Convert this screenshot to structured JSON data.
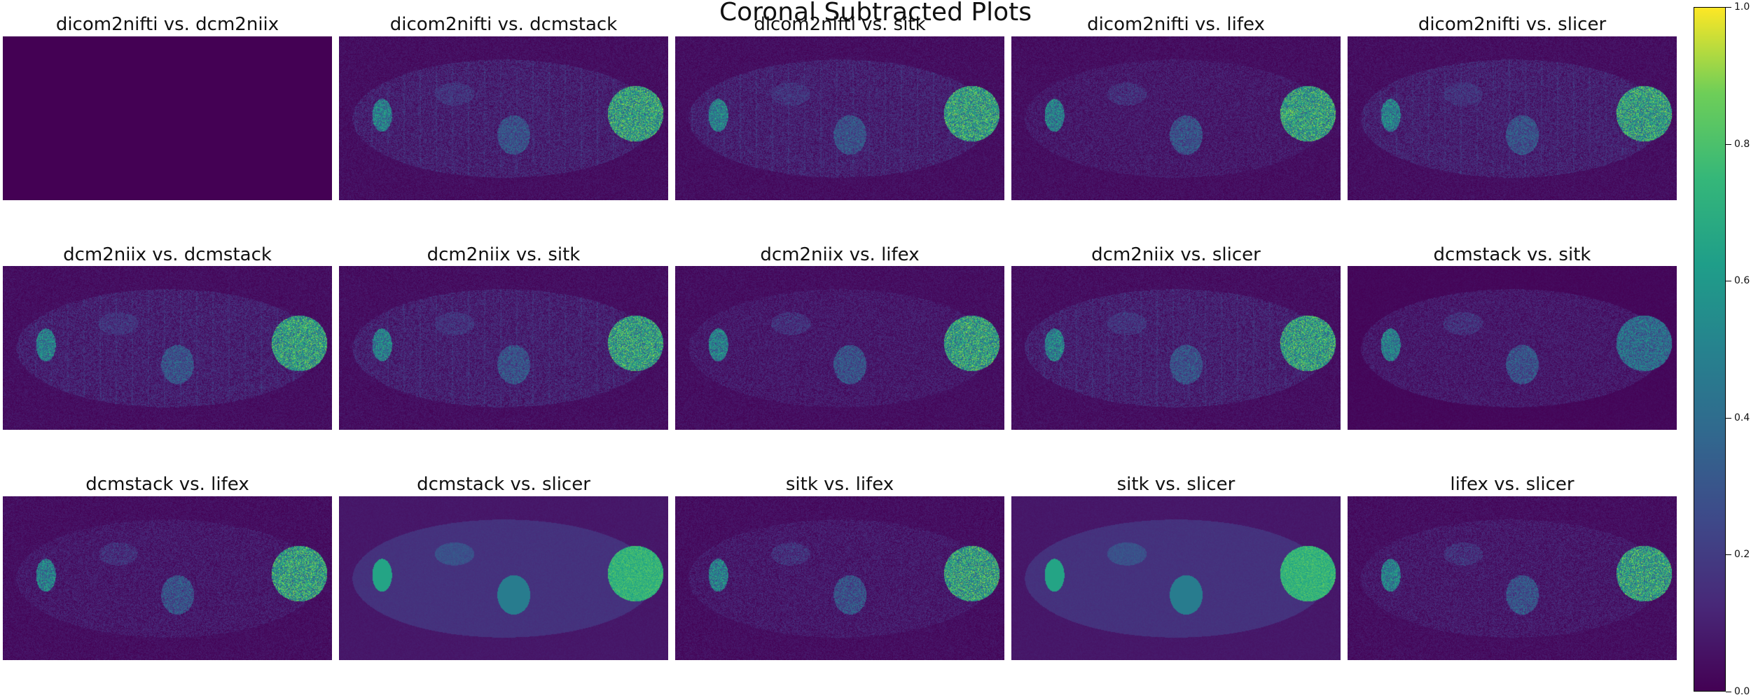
{
  "figure": {
    "title": "Coronal Subtracted Plots",
    "colormap": "viridis",
    "background": "#440154"
  },
  "panels": [
    {
      "title": "dicom2nifti vs. dcm2niix",
      "style": "blank"
    },
    {
      "title": "dicom2nifti vs. dcmstack",
      "style": "diff"
    },
    {
      "title": "dicom2nifti vs. sitk",
      "style": "diff"
    },
    {
      "title": "dicom2nifti vs. lifex",
      "style": "diff_light"
    },
    {
      "title": "dicom2nifti vs. slicer",
      "style": "diff"
    },
    {
      "title": "dcm2niix vs. dcmstack",
      "style": "diff"
    },
    {
      "title": "dcm2niix vs. sitk",
      "style": "diff"
    },
    {
      "title": "dcm2niix vs. lifex",
      "style": "diff_light"
    },
    {
      "title": "dcm2niix vs. slicer",
      "style": "diff"
    },
    {
      "title": "dcmstack vs. sitk",
      "style": "sparse"
    },
    {
      "title": "dcmstack vs. lifex",
      "style": "diff_light"
    },
    {
      "title": "dcmstack vs. slicer",
      "style": "anatomy"
    },
    {
      "title": "sitk vs. lifex",
      "style": "diff_light"
    },
    {
      "title": "sitk vs. slicer",
      "style": "anatomy"
    },
    {
      "title": "lifex vs. slicer",
      "style": "diff_light"
    }
  ],
  "colorbar": {
    "ticks": [
      "0.0",
      "0.2",
      "0.4",
      "0.6",
      "0.8",
      "1.0"
    ]
  }
}
